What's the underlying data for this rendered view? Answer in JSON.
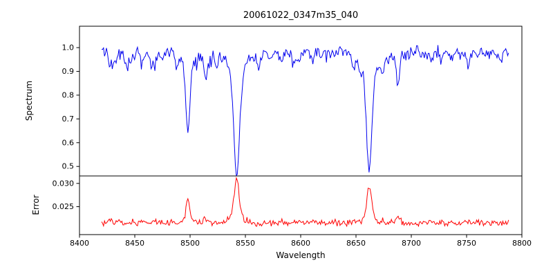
{
  "figure": {
    "title": "20061022_0347m35_040",
    "xlabel": "Wavelength",
    "background": "#ffffff",
    "axis_color": "#000000"
  },
  "x_axis": {
    "lim": [
      8400,
      8800
    ],
    "ticks": [
      8400,
      8450,
      8500,
      8550,
      8600,
      8650,
      8700,
      8750,
      8800
    ]
  },
  "chart_data": [
    {
      "type": "line",
      "panel": "top",
      "name": "spectrum",
      "ylabel": "Spectrum",
      "color": "#0000ee",
      "ylim": [
        0.46,
        1.09
      ],
      "yticks": [
        0.5,
        0.6,
        0.7,
        0.8,
        0.9,
        1.0
      ],
      "x_range": [
        8420,
        8788
      ],
      "continuum": 0.985,
      "noise_sigma": 0.012,
      "dip_probability": 0.05,
      "absorption_lines": [
        {
          "center": 8498,
          "depth": 0.345,
          "width": 1.8
        },
        {
          "center": 8542,
          "depth": 0.495,
          "width": 2.6
        },
        {
          "center": 8662,
          "depth": 0.485,
          "width": 2.3
        }
      ],
      "weak_lines": [
        {
          "center": 8427,
          "depth": 0.05,
          "width": 1.0
        },
        {
          "center": 8433,
          "depth": 0.04,
          "width": 0.9
        },
        {
          "center": 8468,
          "depth": 0.06,
          "width": 1.1
        },
        {
          "center": 8514,
          "depth": 0.09,
          "width": 1.2
        },
        {
          "center": 8524,
          "depth": 0.04,
          "width": 0.9
        },
        {
          "center": 8582,
          "depth": 0.05,
          "width": 1.0
        },
        {
          "center": 8598,
          "depth": 0.035,
          "width": 0.9
        },
        {
          "center": 8611,
          "depth": 0.04,
          "width": 1.0
        },
        {
          "center": 8648,
          "depth": 0.05,
          "width": 1.0
        },
        {
          "center": 8674,
          "depth": 0.045,
          "width": 1.0
        },
        {
          "center": 8688,
          "depth": 0.13,
          "width": 1.4
        },
        {
          "center": 8718,
          "depth": 0.04,
          "width": 1.0
        },
        {
          "center": 8736,
          "depth": 0.035,
          "width": 0.9
        },
        {
          "center": 8751,
          "depth": 0.045,
          "width": 1.0
        }
      ],
      "micro_lines": {
        "count": 50,
        "min_depth": 0.008,
        "max_depth": 0.04
      },
      "seed": 1234
    },
    {
      "type": "line",
      "panel": "bottom",
      "name": "error",
      "ylabel": "Error",
      "color": "#ff0000",
      "ylim": [
        0.019,
        0.0316
      ],
      "yticks": [
        0.025,
        0.03
      ],
      "baseline": 0.0215,
      "noise_sigma": 0.00035,
      "peaks": [
        {
          "center": 8498,
          "amp": 0.0048,
          "width": 1.6
        },
        {
          "center": 8542,
          "amp": 0.0092,
          "width": 2.2
        },
        {
          "center": 8662,
          "amp": 0.008,
          "width": 2.0
        }
      ]
    }
  ]
}
